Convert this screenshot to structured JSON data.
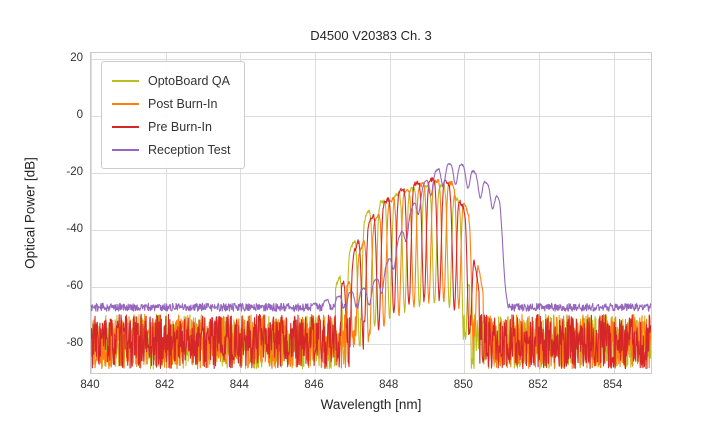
{
  "chart_data": {
    "type": "line",
    "title": "D4500 V20383 Ch. 3",
    "xlabel": "Wavelength [nm]",
    "ylabel": "Optical Power [dB]",
    "xlim": [
      840,
      855
    ],
    "ylim": [
      -90,
      22
    ],
    "xticks": [
      840,
      842,
      844,
      846,
      848,
      850,
      852,
      854
    ],
    "yticks": [
      20,
      0,
      -20,
      -40,
      -60,
      -80
    ],
    "grid": true,
    "grid_color": "#dcdcdc",
    "legend_position": "upper left",
    "sample_step_nm": 0.012,
    "series": [
      {
        "name": "OptoBoard QA",
        "color": "#bcbd22",
        "seed": 11,
        "baseline": -79,
        "noise_amp": 9.5,
        "region": [
          846.55,
          850.15
        ],
        "envelope": [
          [
            846.55,
            -60
          ],
          [
            847.0,
            -45
          ],
          [
            847.4,
            -34
          ],
          [
            847.9,
            -29
          ],
          [
            848.35,
            -26.5
          ],
          [
            848.8,
            -25
          ],
          [
            849.2,
            -24
          ],
          [
            849.55,
            -24.5
          ],
          [
            849.85,
            -30
          ],
          [
            850.15,
            -60
          ]
        ],
        "fringe": {
          "period": 0.4,
          "phase": 847.0,
          "depth": 42,
          "sharp": 3.2,
          "jitter": 1.5
        }
      },
      {
        "name": "Post Burn-In",
        "color": "#ff7f0e",
        "seed": 22,
        "baseline": -79,
        "noise_amp": 9.5,
        "region": [
          846.85,
          850.5
        ],
        "envelope": [
          [
            846.85,
            -60
          ],
          [
            847.3,
            -44
          ],
          [
            847.75,
            -33
          ],
          [
            848.2,
            -28
          ],
          [
            848.65,
            -25
          ],
          [
            849.1,
            -23
          ],
          [
            849.5,
            -22.5
          ],
          [
            849.85,
            -25
          ],
          [
            850.2,
            -38
          ],
          [
            850.5,
            -62
          ]
        ],
        "fringe": {
          "period": 0.4,
          "phase": 847.25,
          "depth": 42,
          "sharp": 3.2,
          "jitter": 1.5
        }
      },
      {
        "name": "Pre Burn-In",
        "color": "#d62728",
        "seed": 33,
        "baseline": -79,
        "noise_amp": 9.5,
        "region": [
          846.7,
          850.4
        ],
        "envelope": [
          [
            846.7,
            -60
          ],
          [
            847.15,
            -44
          ],
          [
            847.6,
            -34
          ],
          [
            848.05,
            -28
          ],
          [
            848.5,
            -24.5
          ],
          [
            848.95,
            -22.5
          ],
          [
            849.4,
            -22
          ],
          [
            849.75,
            -26
          ],
          [
            850.1,
            -36
          ],
          [
            850.4,
            -62
          ]
        ],
        "fringe": {
          "period": 0.405,
          "phase": 847.1,
          "depth": 42,
          "sharp": 3.2,
          "jitter": 1.5
        }
      },
      {
        "name": "Reception Test",
        "color": "#9467bd",
        "seed": 44,
        "baseline": -67,
        "noise_amp": 1.4,
        "region": [
          845.9,
          851.15
        ],
        "envelope": [
          [
            845.9,
            -66
          ],
          [
            846.4,
            -64
          ],
          [
            846.9,
            -62
          ],
          [
            847.4,
            -60
          ],
          [
            847.8,
            -55
          ],
          [
            848.1,
            -47
          ],
          [
            848.4,
            -38
          ],
          [
            848.7,
            -29
          ],
          [
            849.0,
            -22
          ],
          [
            849.3,
            -18.5
          ],
          [
            849.6,
            -16.8
          ],
          [
            849.95,
            -17.2
          ],
          [
            850.25,
            -19.5
          ],
          [
            850.55,
            -23
          ],
          [
            850.8,
            -26
          ],
          [
            850.95,
            -30
          ],
          [
            851.05,
            -45
          ],
          [
            851.15,
            -62
          ]
        ],
        "fringe": {
          "period": 0.33,
          "phase": 849.6,
          "depth": 7,
          "sharp": 2.0,
          "jitter": 0.6
        }
      }
    ]
  }
}
